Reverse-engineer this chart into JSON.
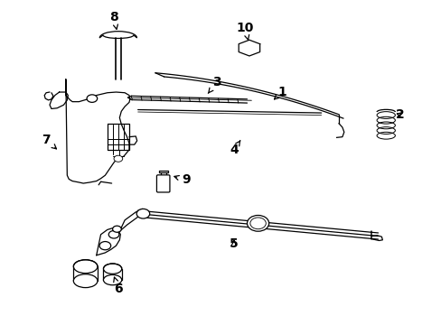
{
  "background_color": "#ffffff",
  "fig_width": 4.89,
  "fig_height": 3.6,
  "dpi": 100,
  "label_fontsize": 10,
  "label_fontweight": "bold",
  "label_positions": {
    "8": [
      0.255,
      0.955,
      0.263,
      0.905
    ],
    "7": [
      0.1,
      0.57,
      0.13,
      0.535
    ],
    "3": [
      0.49,
      0.75,
      0.47,
      0.715
    ],
    "9": [
      0.42,
      0.445,
      0.385,
      0.46
    ],
    "6": [
      0.265,
      0.105,
      0.255,
      0.145
    ],
    "10": [
      0.555,
      0.92,
      0.563,
      0.88
    ],
    "1": [
      0.64,
      0.72,
      0.62,
      0.695
    ],
    "2": [
      0.91,
      0.65,
      0.895,
      0.655
    ],
    "4": [
      0.53,
      0.54,
      0.545,
      0.57
    ],
    "5": [
      0.53,
      0.245,
      0.53,
      0.268
    ]
  }
}
